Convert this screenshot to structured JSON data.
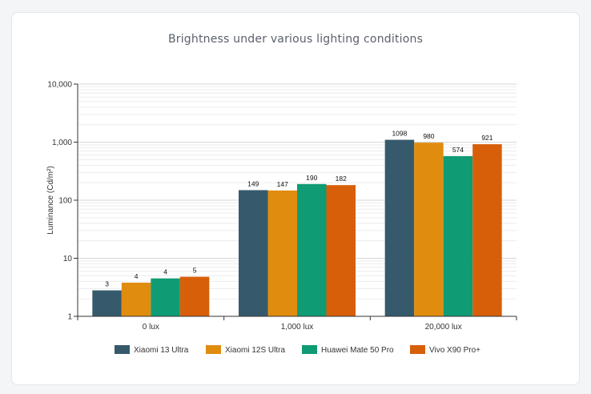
{
  "chart_data": {
    "type": "bar",
    "title": "Brightness under various lighting conditions",
    "xlabel": "",
    "ylabel": "Luminance (Cd/m²)",
    "yscale": "log",
    "ylim": [
      1,
      10000
    ],
    "yticks": [
      1,
      10,
      100,
      1000,
      10000
    ],
    "ytick_labels": [
      "1",
      "10",
      "100",
      "1,000",
      "10,000"
    ],
    "categories": [
      "0 lux",
      "1,000 lux",
      "20,000 lux"
    ],
    "series": [
      {
        "name": "Xiaomi 13 Ultra",
        "color": "#365a6c",
        "values": [
          3,
          149,
          1098
        ]
      },
      {
        "name": "Xiaomi 12S Ultra",
        "color": "#e08c0f",
        "values": [
          4,
          147,
          980
        ]
      },
      {
        "name": "Huawei Mate 50 Pro",
        "color": "#0f9b73",
        "values": [
          4,
          190,
          574
        ]
      },
      {
        "name": "Vivo X90 Pro+",
        "color": "#d85f0a",
        "values": [
          5,
          182,
          921
        ]
      }
    ],
    "bar_heights": [
      [
        2.8,
        149,
        1098
      ],
      [
        3.8,
        147,
        980
      ],
      [
        4.5,
        190,
        574
      ],
      [
        4.8,
        182,
        921
      ]
    ],
    "grid": true,
    "legend_position": "bottom"
  }
}
